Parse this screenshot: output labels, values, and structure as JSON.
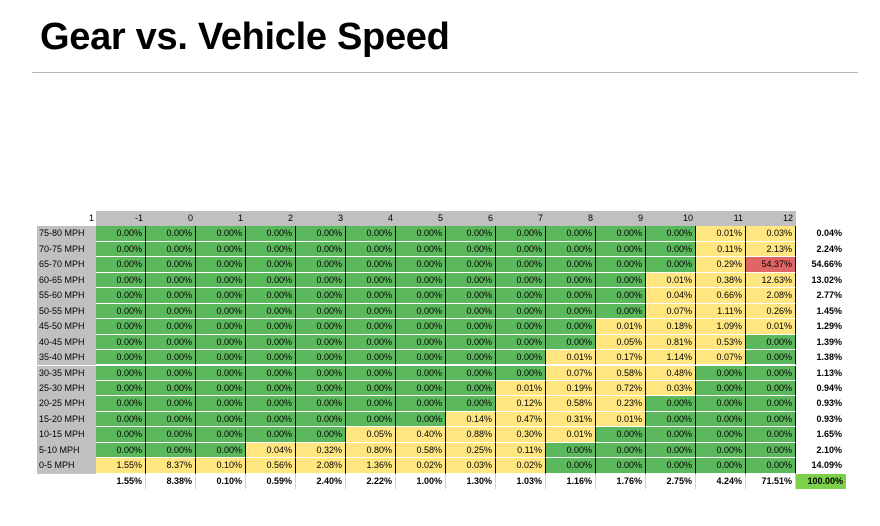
{
  "title": "Gear vs. Vehicle Speed",
  "colors": {
    "low": "#5cb85c",
    "mid": "#ffe680",
    "high": "#e06666",
    "grand": "#7cd04a",
    "header": "#c0c0c0"
  },
  "chart_data": {
    "type": "heatmap",
    "corner_label": "1",
    "columns": [
      "-1",
      "0",
      "1",
      "2",
      "3",
      "4",
      "5",
      "6",
      "7",
      "8",
      "9",
      "10",
      "11",
      "12"
    ],
    "rows": [
      "75-80 MPH",
      "70-75 MPH",
      "65-70 MPH",
      "60-65 MPH",
      "55-60 MPH",
      "50-55 MPH",
      "45-50 MPH",
      "40-45 MPH",
      "35-40 MPH",
      "30-35 MPH",
      "25-30 MPH",
      "20-25 MPH",
      "15-20 MPH",
      "10-15 MPH",
      "5-10 MPH",
      "0-5 MPH"
    ],
    "values": [
      [
        "0.00%",
        "0.00%",
        "0.00%",
        "0.00%",
        "0.00%",
        "0.00%",
        "0.00%",
        "0.00%",
        "0.00%",
        "0.00%",
        "0.00%",
        "0.00%",
        "0.01%",
        "0.03%"
      ],
      [
        "0.00%",
        "0.00%",
        "0.00%",
        "0.00%",
        "0.00%",
        "0.00%",
        "0.00%",
        "0.00%",
        "0.00%",
        "0.00%",
        "0.00%",
        "0.00%",
        "0.11%",
        "2.13%"
      ],
      [
        "0.00%",
        "0.00%",
        "0.00%",
        "0.00%",
        "0.00%",
        "0.00%",
        "0.00%",
        "0.00%",
        "0.00%",
        "0.00%",
        "0.00%",
        "0.00%",
        "0.29%",
        "54.37%"
      ],
      [
        "0.00%",
        "0.00%",
        "0.00%",
        "0.00%",
        "0.00%",
        "0.00%",
        "0.00%",
        "0.00%",
        "0.00%",
        "0.00%",
        "0.00%",
        "0.01%",
        "0.38%",
        "12.63%"
      ],
      [
        "0.00%",
        "0.00%",
        "0.00%",
        "0.00%",
        "0.00%",
        "0.00%",
        "0.00%",
        "0.00%",
        "0.00%",
        "0.00%",
        "0.00%",
        "0.04%",
        "0.66%",
        "2.08%"
      ],
      [
        "0.00%",
        "0.00%",
        "0.00%",
        "0.00%",
        "0.00%",
        "0.00%",
        "0.00%",
        "0.00%",
        "0.00%",
        "0.00%",
        "0.00%",
        "0.07%",
        "1.11%",
        "0.26%"
      ],
      [
        "0.00%",
        "0.00%",
        "0.00%",
        "0.00%",
        "0.00%",
        "0.00%",
        "0.00%",
        "0.00%",
        "0.00%",
        "0.00%",
        "0.01%",
        "0.18%",
        "1.09%",
        "0.01%"
      ],
      [
        "0.00%",
        "0.00%",
        "0.00%",
        "0.00%",
        "0.00%",
        "0.00%",
        "0.00%",
        "0.00%",
        "0.00%",
        "0.00%",
        "0.05%",
        "0.81%",
        "0.53%",
        "0.00%"
      ],
      [
        "0.00%",
        "0.00%",
        "0.00%",
        "0.00%",
        "0.00%",
        "0.00%",
        "0.00%",
        "0.00%",
        "0.00%",
        "0.01%",
        "0.17%",
        "1.14%",
        "0.07%",
        "0.00%"
      ],
      [
        "0.00%",
        "0.00%",
        "0.00%",
        "0.00%",
        "0.00%",
        "0.00%",
        "0.00%",
        "0.00%",
        "0.00%",
        "0.07%",
        "0.58%",
        "0.48%",
        "0.00%",
        "0.00%"
      ],
      [
        "0.00%",
        "0.00%",
        "0.00%",
        "0.00%",
        "0.00%",
        "0.00%",
        "0.00%",
        "0.00%",
        "0.01%",
        "0.19%",
        "0.72%",
        "0.03%",
        "0.00%",
        "0.00%"
      ],
      [
        "0.00%",
        "0.00%",
        "0.00%",
        "0.00%",
        "0.00%",
        "0.00%",
        "0.00%",
        "0.00%",
        "0.12%",
        "0.58%",
        "0.23%",
        "0.00%",
        "0.00%",
        "0.00%"
      ],
      [
        "0.00%",
        "0.00%",
        "0.00%",
        "0.00%",
        "0.00%",
        "0.00%",
        "0.00%",
        "0.14%",
        "0.47%",
        "0.31%",
        "0.01%",
        "0.00%",
        "0.00%",
        "0.00%"
      ],
      [
        "0.00%",
        "0.00%",
        "0.00%",
        "0.00%",
        "0.00%",
        "0.05%",
        "0.40%",
        "0.88%",
        "0.30%",
        "0.01%",
        "0.00%",
        "0.00%",
        "0.00%",
        "0.00%"
      ],
      [
        "0.00%",
        "0.00%",
        "0.00%",
        "0.04%",
        "0.32%",
        "0.80%",
        "0.58%",
        "0.25%",
        "0.11%",
        "0.00%",
        "0.00%",
        "0.00%",
        "0.00%",
        "0.00%"
      ],
      [
        "1.55%",
        "8.37%",
        "0.10%",
        "0.56%",
        "2.08%",
        "1.36%",
        "0.02%",
        "0.03%",
        "0.02%",
        "0.00%",
        "0.00%",
        "0.00%",
        "0.00%",
        "0.00%"
      ]
    ],
    "row_totals": [
      "0.04%",
      "2.24%",
      "54.66%",
      "13.02%",
      "2.77%",
      "1.45%",
      "1.29%",
      "1.39%",
      "1.38%",
      "1.13%",
      "0.94%",
      "0.93%",
      "0.93%",
      "1.65%",
      "2.10%",
      "14.09%"
    ],
    "column_totals": [
      "1.55%",
      "8.38%",
      "0.10%",
      "0.59%",
      "2.40%",
      "2.22%",
      "1.00%",
      "1.30%",
      "1.03%",
      "1.16%",
      "1.76%",
      "2.75%",
      "4.24%",
      "71.51%"
    ],
    "grand_total": "100.00%"
  }
}
